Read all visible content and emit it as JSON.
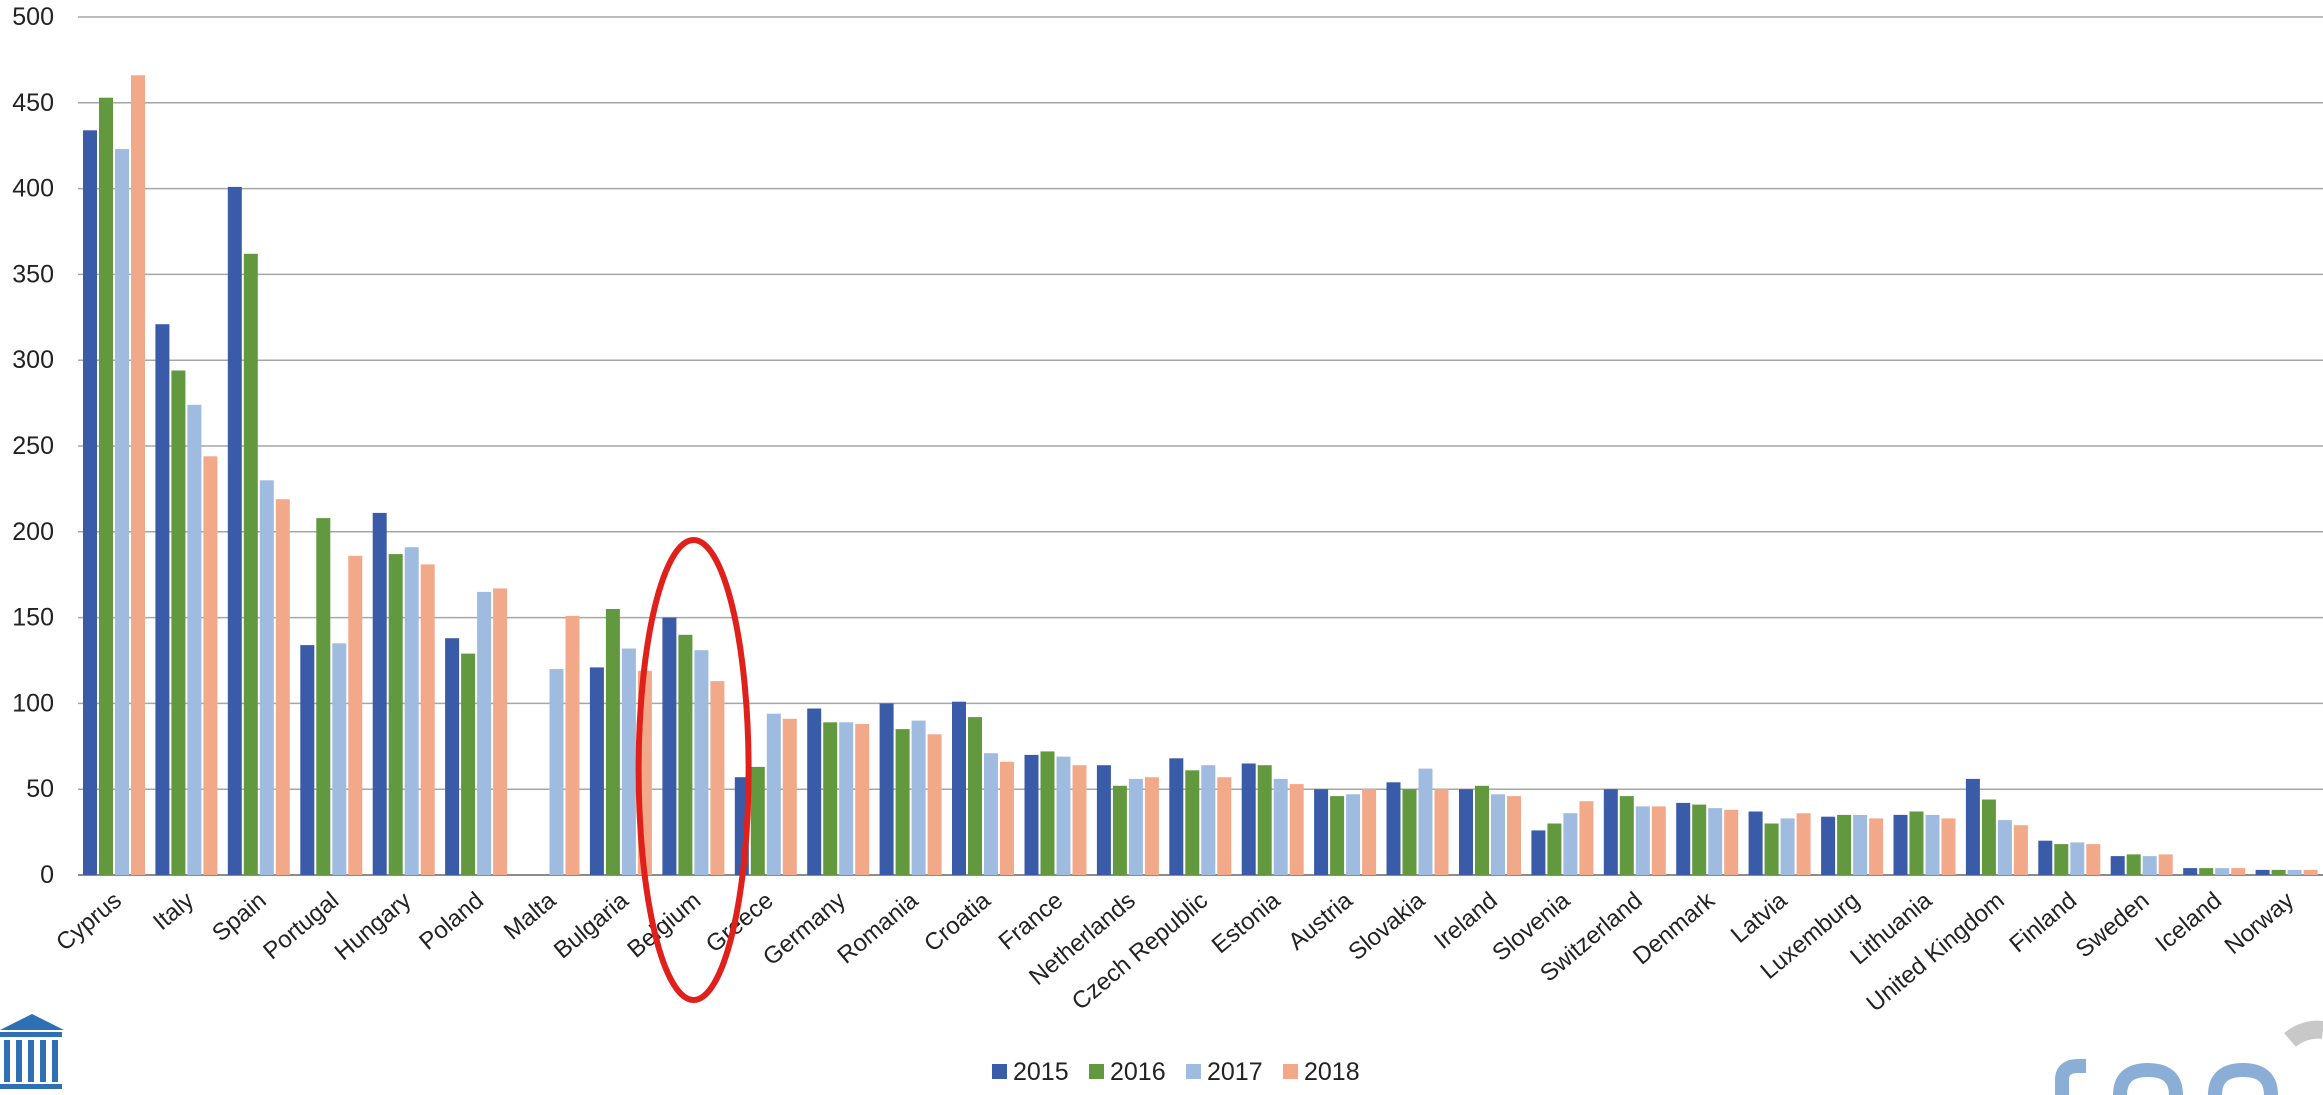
{
  "chart_data": {
    "type": "bar",
    "title": "",
    "xlabel": "",
    "ylabel": "",
    "ylim": [
      0,
      500
    ],
    "yticks": [
      0,
      50,
      100,
      150,
      200,
      250,
      300,
      350,
      400,
      450,
      500
    ],
    "grid": true,
    "legend_position": "bottom-center",
    "categories": [
      "Cyprus",
      "Italy",
      "Spain",
      "Portugal",
      "Hungary",
      "Poland",
      "Malta",
      "Bulgaria",
      "Belgium",
      "Greece",
      "Germany",
      "Romania",
      "Croatia",
      "France",
      "Netherlands",
      "Czech Republic",
      "Estonia",
      "Austria",
      "Slovakia",
      "Ireland",
      "Slovenia",
      "Switzerland",
      "Denmark",
      "Latvia",
      "Luxemburg",
      "Lithuania",
      "United Kingdom",
      "Finland",
      "Sweden",
      "Iceland",
      "Norway"
    ],
    "series": [
      {
        "name": "2015",
        "color": "#3a5ca8",
        "values": [
          434,
          321,
          401,
          134,
          211,
          138,
          null,
          121,
          150,
          57,
          97,
          100,
          101,
          70,
          64,
          68,
          65,
          50,
          54,
          50,
          26,
          50,
          42,
          37,
          34,
          35,
          56,
          20,
          11,
          4,
          3
        ]
      },
      {
        "name": "2016",
        "color": "#62993e",
        "values": [
          453,
          294,
          362,
          208,
          187,
          129,
          null,
          155,
          140,
          63,
          89,
          85,
          92,
          72,
          52,
          61,
          64,
          46,
          50,
          52,
          30,
          46,
          41,
          30,
          35,
          37,
          44,
          18,
          12,
          4,
          3
        ]
      },
      {
        "name": "2017",
        "color": "#9fbce0",
        "values": [
          423,
          274,
          230,
          135,
          191,
          165,
          120,
          132,
          131,
          94,
          89,
          90,
          71,
          69,
          56,
          64,
          56,
          47,
          62,
          47,
          36,
          40,
          39,
          33,
          35,
          35,
          32,
          19,
          11,
          4,
          3
        ]
      },
      {
        "name": "2018",
        "color": "#f2a98a",
        "values": [
          466,
          244,
          219,
          186,
          181,
          167,
          151,
          119,
          113,
          91,
          88,
          82,
          66,
          64,
          57,
          57,
          53,
          50,
          50,
          46,
          43,
          40,
          38,
          36,
          33,
          33,
          29,
          18,
          12,
          4,
          3
        ]
      }
    ],
    "annotations": [
      {
        "type": "ellipse",
        "color": "#e0211b",
        "target_category": "Belgium"
      }
    ]
  }
}
